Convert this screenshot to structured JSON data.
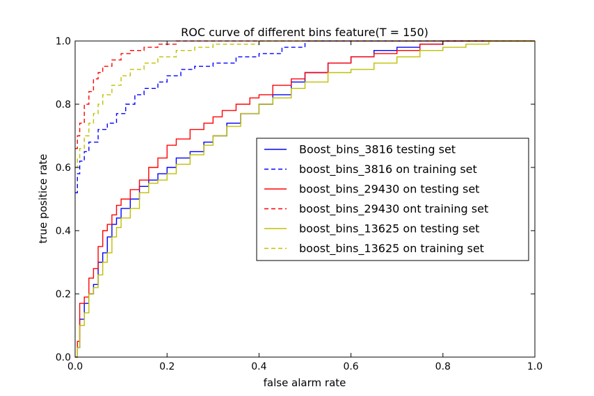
{
  "chart_data": {
    "type": "line",
    "title": "ROC curve of different bins feature(T = 150)",
    "xlabel": "false alarm rate",
    "ylabel": "true positice rate",
    "xlim": [
      0.0,
      1.0
    ],
    "ylim": [
      0.0,
      1.0
    ],
    "xticks": [
      "0.0",
      "0.2",
      "0.4",
      "0.6",
      "0.8",
      "1.0"
    ],
    "yticks": [
      "0.0",
      "0.2",
      "0.4",
      "0.6",
      "0.8",
      "1.0"
    ],
    "grid": false,
    "legend_position": "center-right",
    "series": [
      {
        "name": "Boost_bins_3816 testing set",
        "color": "#0000ff",
        "dash": "solid",
        "points": [
          [
            0,
            0
          ],
          [
            0.005,
            0.03
          ],
          [
            0.01,
            0.12
          ],
          [
            0.02,
            0.17
          ],
          [
            0.03,
            0.2
          ],
          [
            0.04,
            0.23
          ],
          [
            0.05,
            0.3
          ],
          [
            0.06,
            0.33
          ],
          [
            0.07,
            0.38
          ],
          [
            0.08,
            0.42
          ],
          [
            0.09,
            0.44
          ],
          [
            0.1,
            0.47
          ],
          [
            0.12,
            0.5
          ],
          [
            0.14,
            0.54
          ],
          [
            0.16,
            0.56
          ],
          [
            0.18,
            0.58
          ],
          [
            0.2,
            0.6
          ],
          [
            0.22,
            0.63
          ],
          [
            0.25,
            0.65
          ],
          [
            0.28,
            0.68
          ],
          [
            0.3,
            0.7
          ],
          [
            0.33,
            0.74
          ],
          [
            0.36,
            0.77
          ],
          [
            0.4,
            0.8
          ],
          [
            0.43,
            0.83
          ],
          [
            0.47,
            0.87
          ],
          [
            0.5,
            0.9
          ],
          [
            0.55,
            0.93
          ],
          [
            0.6,
            0.95
          ],
          [
            0.65,
            0.97
          ],
          [
            0.7,
            0.98
          ],
          [
            0.75,
            0.99
          ],
          [
            0.8,
            1.0
          ],
          [
            1.0,
            1.0
          ]
        ]
      },
      {
        "name": "boost_bins_3816 on training set",
        "color": "#0000ff",
        "dash": "dashed",
        "points": [
          [
            0,
            0.52
          ],
          [
            0.005,
            0.58
          ],
          [
            0.01,
            0.62
          ],
          [
            0.02,
            0.65
          ],
          [
            0.03,
            0.68
          ],
          [
            0.05,
            0.72
          ],
          [
            0.07,
            0.74
          ],
          [
            0.09,
            0.77
          ],
          [
            0.11,
            0.8
          ],
          [
            0.13,
            0.83
          ],
          [
            0.15,
            0.85
          ],
          [
            0.18,
            0.87
          ],
          [
            0.2,
            0.89
          ],
          [
            0.23,
            0.91
          ],
          [
            0.26,
            0.92
          ],
          [
            0.3,
            0.93
          ],
          [
            0.35,
            0.95
          ],
          [
            0.4,
            0.96
          ],
          [
            0.45,
            0.98
          ],
          [
            0.5,
            1.0
          ],
          [
            1.0,
            1.0
          ]
        ]
      },
      {
        "name": "boost_bins_29430 on testing set",
        "color": "#ff0000",
        "dash": "solid",
        "points": [
          [
            0,
            0
          ],
          [
            0.005,
            0.05
          ],
          [
            0.01,
            0.17
          ],
          [
            0.02,
            0.19
          ],
          [
            0.03,
            0.25
          ],
          [
            0.04,
            0.28
          ],
          [
            0.05,
            0.35
          ],
          [
            0.06,
            0.4
          ],
          [
            0.07,
            0.42
          ],
          [
            0.08,
            0.45
          ],
          [
            0.09,
            0.48
          ],
          [
            0.1,
            0.5
          ],
          [
            0.12,
            0.53
          ],
          [
            0.14,
            0.56
          ],
          [
            0.16,
            0.6
          ],
          [
            0.18,
            0.63
          ],
          [
            0.2,
            0.67
          ],
          [
            0.22,
            0.69
          ],
          [
            0.25,
            0.72
          ],
          [
            0.28,
            0.74
          ],
          [
            0.3,
            0.76
          ],
          [
            0.32,
            0.78
          ],
          [
            0.35,
            0.8
          ],
          [
            0.38,
            0.82
          ],
          [
            0.4,
            0.83
          ],
          [
            0.43,
            0.86
          ],
          [
            0.47,
            0.88
          ],
          [
            0.5,
            0.9
          ],
          [
            0.55,
            0.93
          ],
          [
            0.6,
            0.95
          ],
          [
            0.65,
            0.96
          ],
          [
            0.7,
            0.97
          ],
          [
            0.75,
            0.99
          ],
          [
            0.8,
            1.0
          ],
          [
            1.0,
            1.0
          ]
        ]
      },
      {
        "name": "boost_bins_29430 ont training set",
        "color": "#ff0000",
        "dash": "dashed",
        "points": [
          [
            0,
            0.66
          ],
          [
            0.005,
            0.7
          ],
          [
            0.01,
            0.74
          ],
          [
            0.02,
            0.8
          ],
          [
            0.03,
            0.84
          ],
          [
            0.04,
            0.88
          ],
          [
            0.05,
            0.9
          ],
          [
            0.06,
            0.92
          ],
          [
            0.08,
            0.94
          ],
          [
            0.1,
            0.96
          ],
          [
            0.12,
            0.97
          ],
          [
            0.15,
            0.98
          ],
          [
            0.18,
            0.99
          ],
          [
            0.22,
            1.0
          ],
          [
            1.0,
            1.0
          ]
        ]
      },
      {
        "name": "boost_bins_13625 on testing set",
        "color": "#bfbf00",
        "dash": "solid",
        "points": [
          [
            0,
            0
          ],
          [
            0.005,
            0.03
          ],
          [
            0.01,
            0.1
          ],
          [
            0.02,
            0.14
          ],
          [
            0.03,
            0.2
          ],
          [
            0.04,
            0.22
          ],
          [
            0.05,
            0.26
          ],
          [
            0.06,
            0.3
          ],
          [
            0.07,
            0.33
          ],
          [
            0.08,
            0.38
          ],
          [
            0.09,
            0.41
          ],
          [
            0.1,
            0.44
          ],
          [
            0.12,
            0.47
          ],
          [
            0.14,
            0.52
          ],
          [
            0.16,
            0.55
          ],
          [
            0.18,
            0.56
          ],
          [
            0.2,
            0.58
          ],
          [
            0.22,
            0.61
          ],
          [
            0.25,
            0.64
          ],
          [
            0.28,
            0.67
          ],
          [
            0.3,
            0.7
          ],
          [
            0.33,
            0.73
          ],
          [
            0.36,
            0.77
          ],
          [
            0.4,
            0.8
          ],
          [
            0.43,
            0.82
          ],
          [
            0.47,
            0.85
          ],
          [
            0.5,
            0.87
          ],
          [
            0.55,
            0.9
          ],
          [
            0.6,
            0.91
          ],
          [
            0.65,
            0.93
          ],
          [
            0.7,
            0.95
          ],
          [
            0.75,
            0.97
          ],
          [
            0.8,
            0.98
          ],
          [
            0.85,
            0.99
          ],
          [
            0.9,
            1.0
          ],
          [
            1.0,
            1.0
          ]
        ]
      },
      {
        "name": "boost_bins_13625 on training set",
        "color": "#bfbf00",
        "dash": "dashed",
        "points": [
          [
            0,
            0.6
          ],
          [
            0.005,
            0.63
          ],
          [
            0.01,
            0.66
          ],
          [
            0.02,
            0.7
          ],
          [
            0.03,
            0.74
          ],
          [
            0.04,
            0.77
          ],
          [
            0.05,
            0.8
          ],
          [
            0.06,
            0.83
          ],
          [
            0.08,
            0.86
          ],
          [
            0.1,
            0.89
          ],
          [
            0.12,
            0.91
          ],
          [
            0.15,
            0.93
          ],
          [
            0.18,
            0.95
          ],
          [
            0.22,
            0.97
          ],
          [
            0.26,
            0.98
          ],
          [
            0.3,
            0.99
          ],
          [
            0.35,
            0.99
          ],
          [
            0.4,
            1.0
          ],
          [
            1.0,
            1.0
          ]
        ]
      }
    ]
  }
}
